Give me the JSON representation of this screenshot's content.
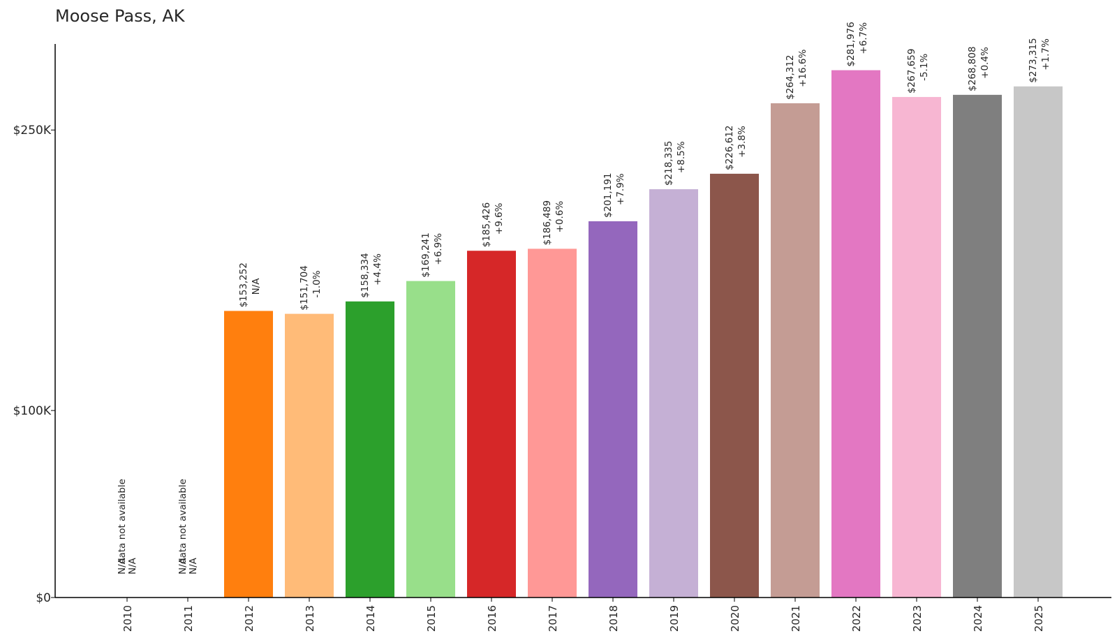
{
  "chart_data": {
    "type": "bar",
    "title": "Moose Pass, AK",
    "xlabel": "",
    "ylabel": "",
    "ylim": [
      0,
      296000
    ],
    "yticks": [
      {
        "value": 0,
        "label": "$0"
      },
      {
        "value": 100000,
        "label": "$100K"
      },
      {
        "value": 250000,
        "label": "$250K"
      }
    ],
    "grid": false,
    "legend": "none",
    "categories": [
      "2010",
      "2011",
      "2012",
      "2013",
      "2014",
      "2015",
      "2016",
      "2017",
      "2018",
      "2019",
      "2020",
      "2021",
      "2022",
      "2023",
      "2024",
      "2025"
    ],
    "values": [
      null,
      null,
      153252,
      151704,
      158334,
      169241,
      185426,
      186489,
      201191,
      218335,
      226612,
      264312,
      281976,
      267659,
      268808,
      273315
    ],
    "value_labels": [
      "N/A",
      "N/A",
      "$153,252",
      "$151,704",
      "$158,334",
      "$169,241",
      "$185,426",
      "$186,489",
      "$201,191",
      "$218,335",
      "$226,612",
      "$264,312",
      "$281,976",
      "$267,659",
      "$268,808",
      "$273,315"
    ],
    "change_labels": [
      "data not available",
      "data not available",
      "N/A",
      "-1.0%",
      "+4.4%",
      "+6.9%",
      "+9.6%",
      "+0.6%",
      "+7.9%",
      "+8.5%",
      "+3.8%",
      "+16.6%",
      "+6.7%",
      "-5.1%",
      "+0.4%",
      "+1.7%"
    ],
    "na_second_labels": [
      "N/A",
      "N/A"
    ],
    "colors": [
      "#1f77b4",
      "#aec7e8",
      "#ff7f0e",
      "#ffbb78",
      "#2ca02c",
      "#98df8a",
      "#d62728",
      "#ff9896",
      "#9467bd",
      "#c5b0d5",
      "#8c564b",
      "#c49c94",
      "#e377c2",
      "#f7b6d2",
      "#7f7f7f",
      "#c7c7c7"
    ]
  }
}
